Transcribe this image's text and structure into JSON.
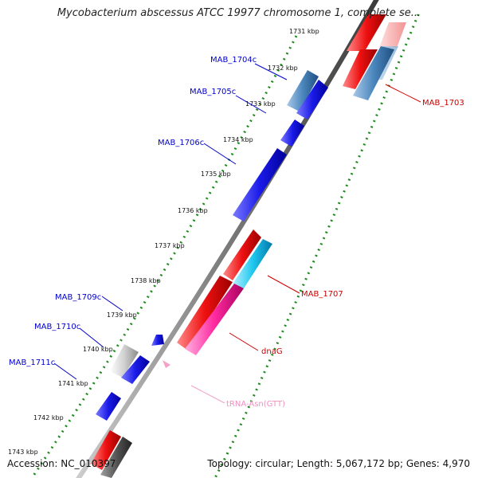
{
  "title": "Mycobacterium abscessus ATCC 19977 chromosome 1, complete se...",
  "footer": {
    "accession": "Accession: NC_010397",
    "summary": "Topology: circular; Length: 5,067,172 bp; Genes: 4,970"
  },
  "ruler": {
    "ticks": [
      "1731 kbp",
      "1732 kbp",
      "1733 kbp",
      "1734 kbp",
      "1735 kbp",
      "1736 kbp",
      "1737 kbp",
      "1738 kbp",
      "1739 kbp",
      "1740 kbp",
      "1741 kbp",
      "1742 kbp",
      "1743 kbp"
    ]
  },
  "features": {
    "MAB_1703": "MAB_1703",
    "MAB_1704c": "MAB_1704c",
    "MAB_1705c": "MAB_1705c",
    "MAB_1706c": "MAB_1706c",
    "MAB_1707": "MAB_1707",
    "dnaG": "dnaG",
    "tRNA": "tRNA-Asn(GTT)",
    "MAB_1709c": "MAB_1709c",
    "MAB_1710c": "MAB_1710c",
    "MAB_1711c": "MAB_1711c"
  },
  "colors": {
    "forward_gene": "#e8101a",
    "reverse_gene": "#1414e6",
    "forward_label": "#cc0000",
    "reverse_label": "#0000cc",
    "trna": "#f5a0c8",
    "backbone": "#8a8a8a",
    "ticks": "#1d8a1d"
  }
}
